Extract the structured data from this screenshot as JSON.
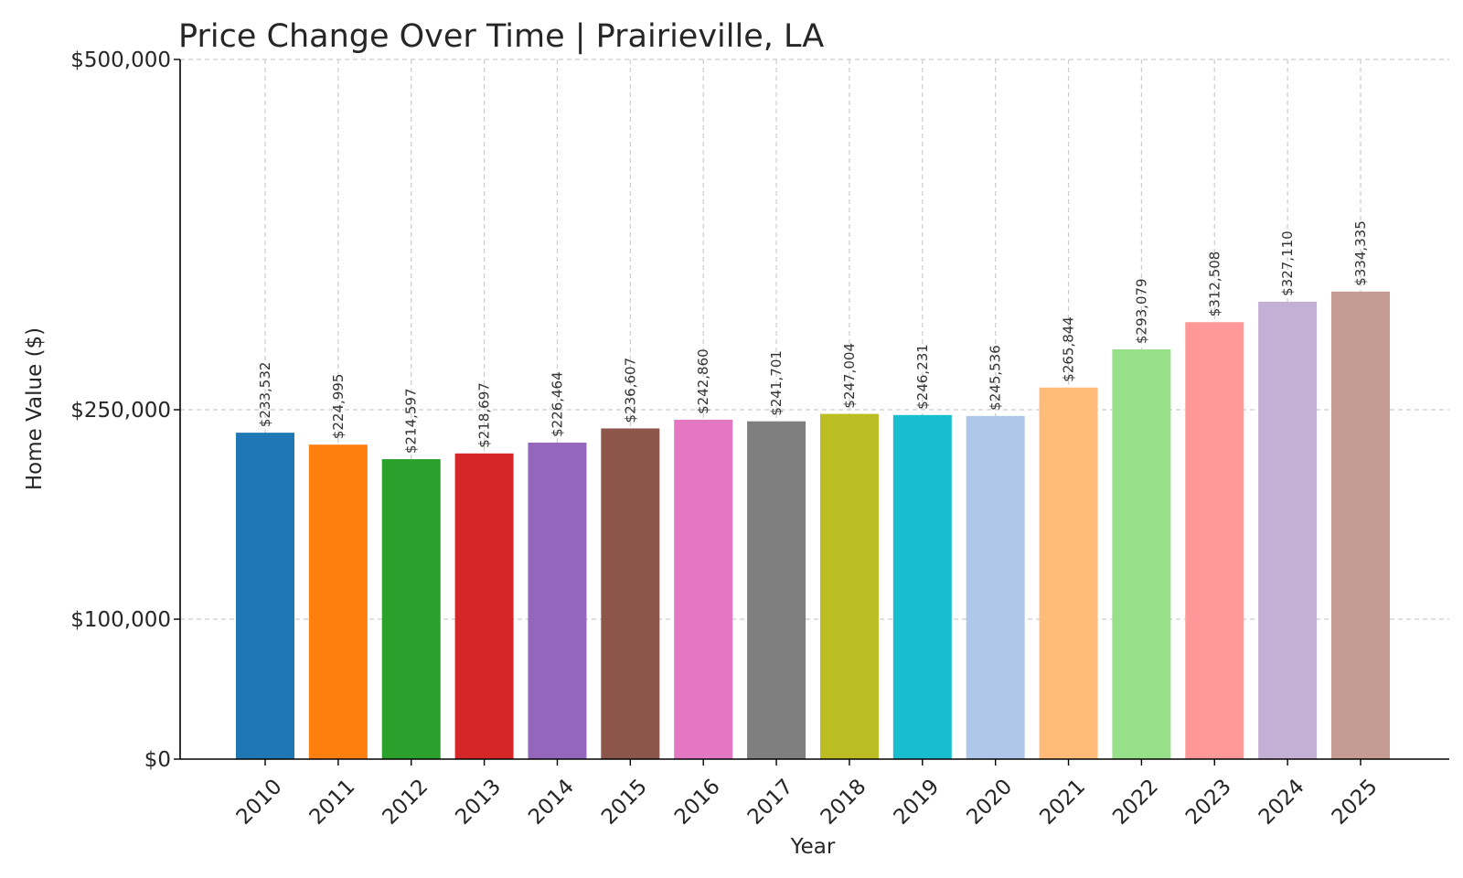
{
  "chart_data": {
    "type": "bar",
    "title": "Price Change Over Time | Prairieville, LA",
    "xlabel": "Year",
    "ylabel": "Home Value ($)",
    "categories": [
      "2010",
      "2011",
      "2012",
      "2013",
      "2014",
      "2015",
      "2016",
      "2017",
      "2018",
      "2019",
      "2020",
      "2021",
      "2022",
      "2023",
      "2024",
      "2025"
    ],
    "values": [
      233532,
      224995,
      214597,
      218697,
      226464,
      236607,
      242860,
      241701,
      247004,
      246231,
      245536,
      265844,
      293079,
      312508,
      327110,
      334335
    ],
    "value_labels": [
      "$233,532",
      "$224,995",
      "$214,597",
      "$218,697",
      "$226,464",
      "$236,607",
      "$242,860",
      "$241,701",
      "$247,004",
      "$246,231",
      "$245,536",
      "$265,844",
      "$293,079",
      "$312,508",
      "$327,110",
      "$334,335"
    ],
    "y_ticks": [
      0,
      100000,
      250000,
      500000
    ],
    "y_tick_labels": [
      "$0",
      "$100,000",
      "$250,000",
      "$500,000"
    ],
    "ylim": [
      0,
      500000
    ],
    "grid": true,
    "colors": [
      "#1f77b4",
      "#ff7f0e",
      "#2ca02c",
      "#d62728",
      "#9467bd",
      "#8c564b",
      "#e377c2",
      "#7f7f7f",
      "#bcbd22",
      "#17becf",
      "#aec7e8",
      "#ffbb78",
      "#98df8a",
      "#ff9896",
      "#c5b0d5",
      "#c49c94"
    ]
  }
}
